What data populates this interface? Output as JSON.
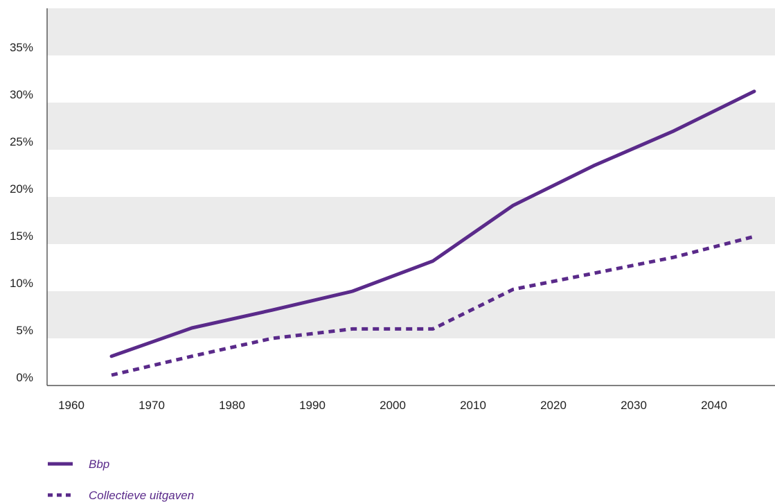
{
  "chart_data": {
    "type": "line",
    "title": "",
    "xlabel": "",
    "ylabel": "",
    "xlim": [
      1960,
      2045
    ],
    "ylim": [
      0,
      40
    ],
    "x_ticks": [
      1960,
      1970,
      1980,
      1990,
      2000,
      2010,
      2020,
      2030,
      2040
    ],
    "x_tick_labels": [
      "1960",
      "1970",
      "1980",
      "1990",
      "2000",
      "2010",
      "2020",
      "2030",
      "2040"
    ],
    "y_ticks": [
      0,
      5,
      10,
      15,
      20,
      25,
      30,
      35
    ],
    "y_tick_labels": [
      "0%",
      "5%",
      "10%",
      "15%",
      "20%",
      "25%",
      "30%",
      "35%"
    ],
    "grid": "alternating horizontal bands",
    "legend_position": "bottom-left",
    "series": [
      {
        "name": "Bbp",
        "style": "solid",
        "color": "#5a2a8a",
        "x": [
          1965,
          1975,
          1985,
          1995,
          2005,
          2015,
          2025,
          2035,
          2045
        ],
        "y": [
          3.1,
          6.1,
          8.0,
          10.0,
          13.2,
          19.1,
          23.3,
          27.0,
          31.2
        ]
      },
      {
        "name": "Collectieve uitgaven",
        "style": "dashed",
        "color": "#5a2a8a",
        "x": [
          1965,
          1975,
          1985,
          1995,
          2005,
          2015,
          2025,
          2035,
          2045
        ],
        "y": [
          1.1,
          3.1,
          5.0,
          6.0,
          6.0,
          10.2,
          11.9,
          13.6,
          15.8
        ]
      }
    ]
  },
  "colors": {
    "band": "#ebebeb",
    "axis": "#333333",
    "series": "#5a2a8a"
  }
}
